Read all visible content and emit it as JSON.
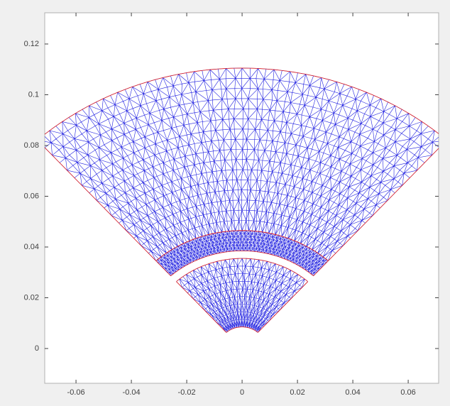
{
  "chart_data": {
    "type": "mesh",
    "xlim": [
      -0.0713,
      0.071
    ],
    "ylim": [
      -0.0137,
      0.1323
    ],
    "xticks": [
      -0.06,
      -0.04,
      -0.02,
      0,
      0.02,
      0.04,
      0.06
    ],
    "yticks": [
      0,
      0.02,
      0.04,
      0.06,
      0.08,
      0.1,
      0.12
    ],
    "half_angle_deg": 42,
    "regions": [
      {
        "r": [
          0.0085,
          0.0355
        ]
      },
      {
        "r": [
          0.0385,
          0.0465
        ]
      },
      {
        "r": [
          0.0465,
          0.1105
        ]
      }
    ],
    "edge_color": "#1f1fe0",
    "boundary_color": "#e02020"
  }
}
